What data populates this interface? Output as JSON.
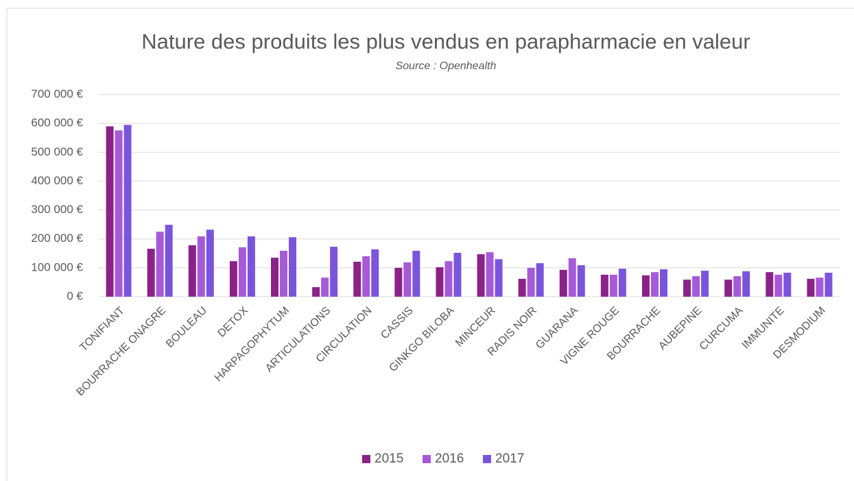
{
  "chart_data": {
    "type": "bar",
    "title": "Nature des produits les plus vendus en parapharmacie en valeur",
    "subtitle": "Source : Openhealth",
    "categories": [
      "TONIFIANT",
      "BOURRACHE ONAGRE",
      "BOULEAU",
      "DETOX",
      "HARPAGOPHYTUM",
      "ARTICULATIONS",
      "CIRCULATION",
      "CASSIS",
      "GINKGO BILOBA",
      "MINCEUR",
      "RADIS NOIR",
      "GUARANA",
      "VIGNE ROUGE",
      "BOURRACHE",
      "AUBEPINE",
      "CURCUMA",
      "IMMUNITE",
      "DESMODIUM"
    ],
    "series": [
      {
        "name": "2015",
        "color": "#8b2287",
        "values": [
          590000,
          166000,
          178000,
          123000,
          135000,
          33000,
          121000,
          100000,
          102000,
          147000,
          62000,
          93000,
          76000,
          74000,
          59000,
          59000,
          85000,
          62000
        ]
      },
      {
        "name": "2016",
        "color": "#a65ad8",
        "values": [
          576000,
          225000,
          209000,
          171000,
          159000,
          66000,
          140000,
          119000,
          123000,
          154000,
          100000,
          133000,
          76000,
          85000,
          71000,
          71000,
          76000,
          66000
        ]
      },
      {
        "name": "2017",
        "color": "#7a55dc",
        "values": [
          595000,
          249000,
          232000,
          209000,
          206000,
          173000,
          164000,
          159000,
          152000,
          130000,
          116000,
          109000,
          97000,
          95000,
          90000,
          88000,
          83000,
          83000
        ]
      }
    ],
    "ylim": [
      0,
      700000
    ],
    "yticks": [
      {
        "value": 0,
        "label": "0 €"
      },
      {
        "value": 100000,
        "label": "100 000 €"
      },
      {
        "value": 200000,
        "label": "200 000 €"
      },
      {
        "value": 300000,
        "label": "300 000 €"
      },
      {
        "value": 400000,
        "label": "400 000 €"
      },
      {
        "value": 500000,
        "label": "500 000 €"
      },
      {
        "value": 600000,
        "label": "600 000 €"
      },
      {
        "value": 700000,
        "label": "700 000 €"
      }
    ],
    "grid": true,
    "legend": "bottom"
  }
}
